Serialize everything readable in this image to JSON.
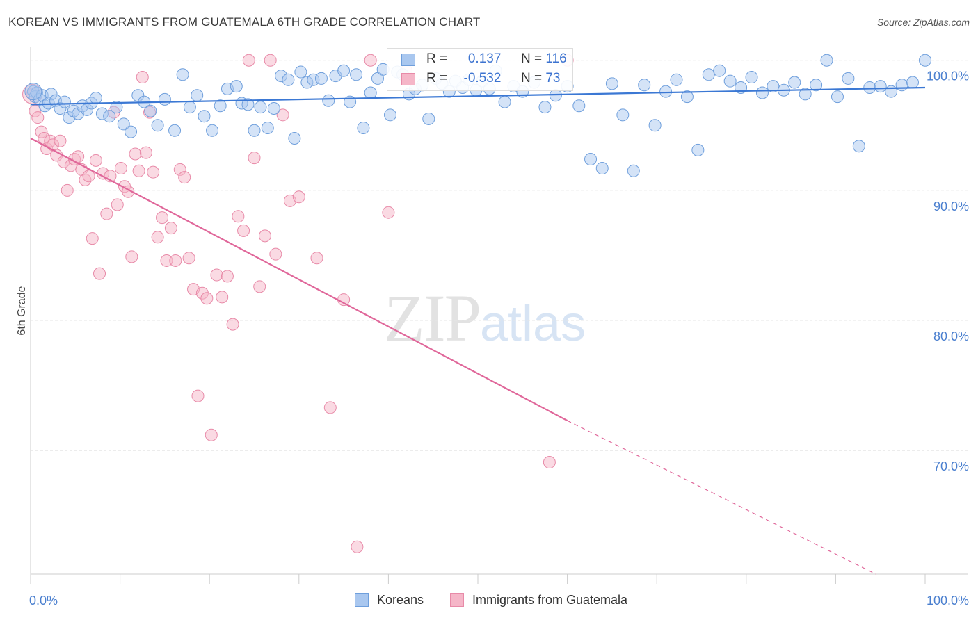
{
  "title": "KOREAN VS IMMIGRANTS FROM GUATEMALA 6TH GRADE CORRELATION CHART",
  "source": "Source: ZipAtlas.com",
  "watermark": {
    "zip": "ZIP",
    "atlas": "atlas"
  },
  "legend_top": {
    "korean": {
      "r_label": "R =",
      "r_value": "0.137",
      "n_label": "N =",
      "n_value": "116"
    },
    "guatemala": {
      "r_label": "R =",
      "r_value": "-0.532",
      "n_label": "N =",
      "n_value": "73"
    }
  },
  "legend_bottom": {
    "korean": "Koreans",
    "guatemala": "Immigrants from Guatemala"
  },
  "colors": {
    "korean_fill": "#a9c7ef",
    "korean_stroke": "#6f9fdc",
    "korean_line": "#3b78d4",
    "guat_fill": "#f5b6c8",
    "guat_stroke": "#e88aa8",
    "guat_line": "#e0679a",
    "tick_text": "#4a7fcf",
    "grid": "#e6e6e6"
  },
  "chart_data": {
    "type": "scatter",
    "title": "KOREAN VS IMMIGRANTS FROM GUATEMALA 6TH GRADE CORRELATION CHART",
    "xlabel": "",
    "ylabel": "6th Grade",
    "xlim": [
      0,
      100
    ],
    "ylim": [
      60.5,
      101
    ],
    "x_tick_labels": [
      "0.0%",
      "100.0%"
    ],
    "y_ticks": [
      70,
      80,
      90,
      100
    ],
    "y_tick_labels": [
      "70.0%",
      "80.0%",
      "90.0%",
      "100.0%"
    ],
    "grid": true,
    "legend_position": "bottom",
    "series": [
      {
        "name": "Koreans",
        "r": 0.137,
        "n": 116,
        "trend": {
          "x": [
            0,
            100
          ],
          "y": [
            96.6,
            97.9
          ]
        },
        "points": [
          [
            0.3,
            97.6
          ],
          [
            0.5,
            97.2
          ],
          [
            0.7,
            97.5
          ],
          [
            1.0,
            97.0
          ],
          [
            1.3,
            97.3
          ],
          [
            1.6,
            96.5
          ],
          [
            2.0,
            96.7
          ],
          [
            2.3,
            97.4
          ],
          [
            2.8,
            96.9
          ],
          [
            3.3,
            96.3
          ],
          [
            3.8,
            96.8
          ],
          [
            4.3,
            95.6
          ],
          [
            4.8,
            96.1
          ],
          [
            5.3,
            95.9
          ],
          [
            5.8,
            96.5
          ],
          [
            6.3,
            96.2
          ],
          [
            6.8,
            96.7
          ],
          [
            7.3,
            97.1
          ],
          [
            8.0,
            95.9
          ],
          [
            8.8,
            95.7
          ],
          [
            9.6,
            96.4
          ],
          [
            10.4,
            95.1
          ],
          [
            11.2,
            94.5
          ],
          [
            12.0,
            97.3
          ],
          [
            12.7,
            96.8
          ],
          [
            13.4,
            96.1
          ],
          [
            14.2,
            95.0
          ],
          [
            15.0,
            97.0
          ],
          [
            16.1,
            94.6
          ],
          [
            17.0,
            98.9
          ],
          [
            17.8,
            96.4
          ],
          [
            18.6,
            97.3
          ],
          [
            19.4,
            95.7
          ],
          [
            20.3,
            94.6
          ],
          [
            21.2,
            96.5
          ],
          [
            22.0,
            97.8
          ],
          [
            23.0,
            98.0
          ],
          [
            23.6,
            96.7
          ],
          [
            24.3,
            96.6
          ],
          [
            25.0,
            94.6
          ],
          [
            25.7,
            96.4
          ],
          [
            26.5,
            94.8
          ],
          [
            27.2,
            96.3
          ],
          [
            28.0,
            98.8
          ],
          [
            28.8,
            98.5
          ],
          [
            29.5,
            94.0
          ],
          [
            30.2,
            99.1
          ],
          [
            30.9,
            98.3
          ],
          [
            31.6,
            98.5
          ],
          [
            32.5,
            98.6
          ],
          [
            33.3,
            96.9
          ],
          [
            34.1,
            98.8
          ],
          [
            35.0,
            99.2
          ],
          [
            35.7,
            96.8
          ],
          [
            36.4,
            98.9
          ],
          [
            37.2,
            94.8
          ],
          [
            38.0,
            97.5
          ],
          [
            38.8,
            98.6
          ],
          [
            39.4,
            99.3
          ],
          [
            40.2,
            95.8
          ],
          [
            41.0,
            99.1
          ],
          [
            41.6,
            98.9
          ],
          [
            42.3,
            97.4
          ],
          [
            43.0,
            97.8
          ],
          [
            43.8,
            98.1
          ],
          [
            44.5,
            95.5
          ],
          [
            45.3,
            98.6
          ],
          [
            46.0,
            98.2
          ],
          [
            46.8,
            97.6
          ],
          [
            47.5,
            98.4
          ],
          [
            48.3,
            97.9
          ],
          [
            49.0,
            98.5
          ],
          [
            49.8,
            97.7
          ],
          [
            50.5,
            98.4
          ],
          [
            51.3,
            97.8
          ],
          [
            52.0,
            99.2
          ],
          [
            53.0,
            96.8
          ],
          [
            54.0,
            98.0
          ],
          [
            55.0,
            97.6
          ],
          [
            56.3,
            98.3
          ],
          [
            57.5,
            96.4
          ],
          [
            58.7,
            97.3
          ],
          [
            60.0,
            98.0
          ],
          [
            61.3,
            96.5
          ],
          [
            62.6,
            92.4
          ],
          [
            63.9,
            91.7
          ],
          [
            65.0,
            98.2
          ],
          [
            66.2,
            95.8
          ],
          [
            67.4,
            91.5
          ],
          [
            68.6,
            98.1
          ],
          [
            69.8,
            95.0
          ],
          [
            71.0,
            97.6
          ],
          [
            72.2,
            98.5
          ],
          [
            73.4,
            97.2
          ],
          [
            74.6,
            93.1
          ],
          [
            75.8,
            98.9
          ],
          [
            77.0,
            99.2
          ],
          [
            78.2,
            98.4
          ],
          [
            79.4,
            97.9
          ],
          [
            80.6,
            98.7
          ],
          [
            81.8,
            97.5
          ],
          [
            83.0,
            98.0
          ],
          [
            84.2,
            97.7
          ],
          [
            85.4,
            98.3
          ],
          [
            86.6,
            97.4
          ],
          [
            87.8,
            98.1
          ],
          [
            89.0,
            100.0
          ],
          [
            90.2,
            97.2
          ],
          [
            91.4,
            98.6
          ],
          [
            92.6,
            93.4
          ],
          [
            93.8,
            97.9
          ],
          [
            95.0,
            98.0
          ],
          [
            96.2,
            97.6
          ],
          [
            97.4,
            98.1
          ],
          [
            98.6,
            98.3
          ],
          [
            100.0,
            100.0
          ]
        ]
      },
      {
        "name": "Immigrants from Guatemala",
        "r": -0.532,
        "n": 73,
        "trend": {
          "x": [
            0,
            60,
            94.5
          ],
          "y": [
            94.0,
            72.3,
            60.5
          ],
          "solid_until": 60
        },
        "points": [
          [
            0.2,
            97.4
          ],
          [
            0.5,
            96.1
          ],
          [
            0.8,
            95.6
          ],
          [
            1.2,
            94.5
          ],
          [
            1.5,
            94.0
          ],
          [
            1.8,
            93.2
          ],
          [
            2.2,
            93.8
          ],
          [
            2.5,
            93.5
          ],
          [
            2.9,
            92.7
          ],
          [
            3.3,
            93.8
          ],
          [
            3.7,
            92.2
          ],
          [
            4.1,
            90.0
          ],
          [
            4.5,
            91.9
          ],
          [
            4.9,
            92.4
          ],
          [
            5.3,
            92.6
          ],
          [
            5.7,
            91.6
          ],
          [
            6.1,
            90.8
          ],
          [
            6.5,
            91.1
          ],
          [
            6.9,
            86.3
          ],
          [
            7.3,
            92.3
          ],
          [
            7.7,
            83.6
          ],
          [
            8.1,
            91.3
          ],
          [
            8.5,
            88.2
          ],
          [
            8.9,
            91.1
          ],
          [
            9.3,
            96.0
          ],
          [
            9.7,
            88.9
          ],
          [
            10.1,
            91.7
          ],
          [
            10.5,
            90.3
          ],
          [
            10.9,
            89.9
          ],
          [
            11.3,
            84.9
          ],
          [
            11.7,
            92.8
          ],
          [
            12.1,
            91.5
          ],
          [
            12.5,
            98.7
          ],
          [
            12.9,
            92.9
          ],
          [
            13.3,
            96.0
          ],
          [
            13.7,
            91.4
          ],
          [
            14.2,
            86.4
          ],
          [
            14.7,
            87.9
          ],
          [
            15.2,
            84.6
          ],
          [
            15.7,
            87.1
          ],
          [
            16.2,
            84.6
          ],
          [
            16.7,
            91.6
          ],
          [
            17.2,
            91.0
          ],
          [
            17.7,
            84.8
          ],
          [
            18.2,
            82.4
          ],
          [
            18.7,
            74.2
          ],
          [
            19.2,
            82.1
          ],
          [
            19.7,
            81.7
          ],
          [
            20.2,
            71.2
          ],
          [
            20.8,
            83.5
          ],
          [
            21.4,
            81.8
          ],
          [
            22.0,
            83.4
          ],
          [
            22.6,
            79.7
          ],
          [
            23.2,
            88.0
          ],
          [
            23.8,
            86.9
          ],
          [
            24.4,
            100.0
          ],
          [
            25.0,
            92.5
          ],
          [
            25.6,
            82.6
          ],
          [
            26.2,
            86.5
          ],
          [
            26.8,
            100.0
          ],
          [
            27.4,
            85.1
          ],
          [
            28.2,
            95.8
          ],
          [
            29.0,
            89.2
          ],
          [
            30.0,
            89.5
          ],
          [
            32.0,
            84.8
          ],
          [
            33.5,
            73.3
          ],
          [
            35.0,
            81.6
          ],
          [
            36.5,
            62.6
          ],
          [
            38.0,
            100.0
          ],
          [
            40.0,
            88.3
          ],
          [
            42.0,
            99.2
          ],
          [
            58.0,
            69.1
          ],
          [
            60.0,
            100.0
          ]
        ]
      }
    ]
  }
}
